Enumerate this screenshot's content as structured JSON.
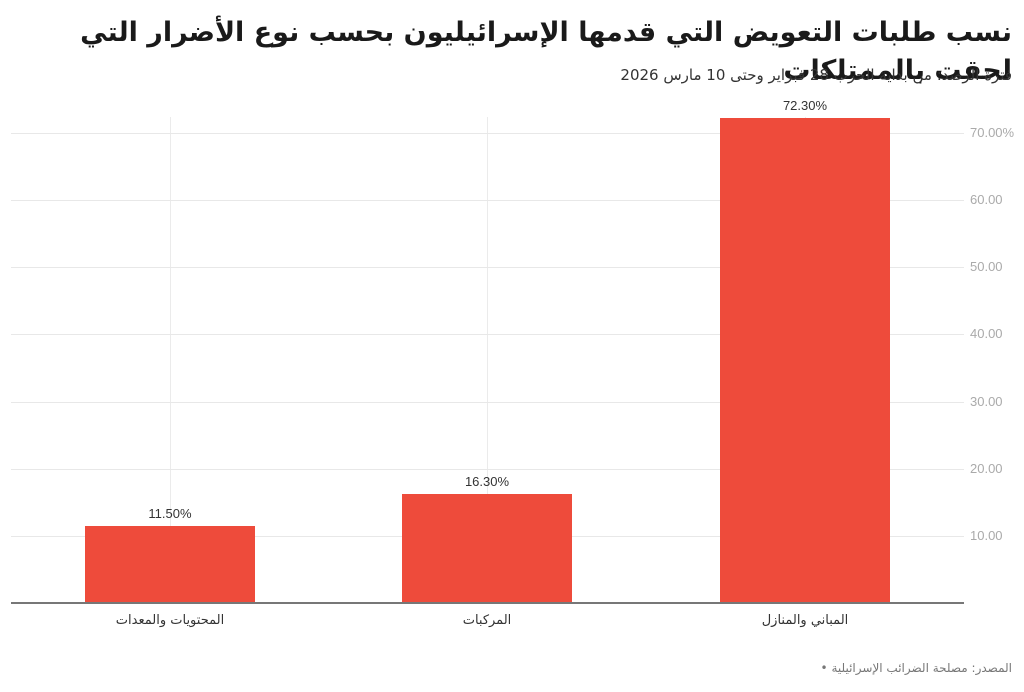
{
  "header": {
    "title": "نسب طلبات التعويض التي قدمها الإسرائيليون بحسب نوع الأضرار التي لحقت بالممتلكات",
    "subtitle": "فترة الرصد: من بداية الحرب 28 فبراير وحتى 10 مارس 2026"
  },
  "footer": {
    "source": "المصدر: مصلحة الضرائب الإسرائيلية •"
  },
  "colors": {
    "bar": "#EE4B3B",
    "grid": "#e8e8e8",
    "axis": "#777777",
    "tick_text": "#aaaaaa"
  },
  "axis": {
    "y_ticks": [
      "10.00",
      "20.00",
      "30.00",
      "40.00",
      "50.00",
      "60.00",
      "70.00%"
    ]
  },
  "bars": [
    {
      "category": "المحتويات والمعدات",
      "value": 11.5,
      "label": "11.50%"
    },
    {
      "category": "المركبات",
      "value": 16.3,
      "label": "16.30%"
    },
    {
      "category": "المباني والمنازل",
      "value": 72.3,
      "label": "72.30%"
    }
  ],
  "chart_data": {
    "type": "bar",
    "title": "نسب طلبات التعويض التي قدمها الإسرائيليون بحسب نوع الأضرار التي لحقت بالممتلكات",
    "subtitle": "فترة الرصد: من بداية الحرب 28 فبراير وحتى 10 مارس 2026",
    "categories": [
      "المحتويات والمعدات",
      "المركبات",
      "المباني والمنازل"
    ],
    "values": [
      11.5,
      16.3,
      72.3
    ],
    "data_labels": [
      "11.50%",
      "16.30%",
      "72.30%"
    ],
    "xlabel": "",
    "ylabel": "",
    "ylim": [
      0,
      72.3
    ],
    "y_ticks": [
      10,
      20,
      30,
      40,
      50,
      60,
      70
    ],
    "y_tick_labels": [
      "10.00",
      "20.00",
      "30.00",
      "40.00",
      "50.00",
      "60.00",
      "70.00%"
    ],
    "y_axis_position": "right",
    "grid": true,
    "legend": null,
    "source": "المصدر: مصلحة الضرائب الإسرائيلية"
  }
}
